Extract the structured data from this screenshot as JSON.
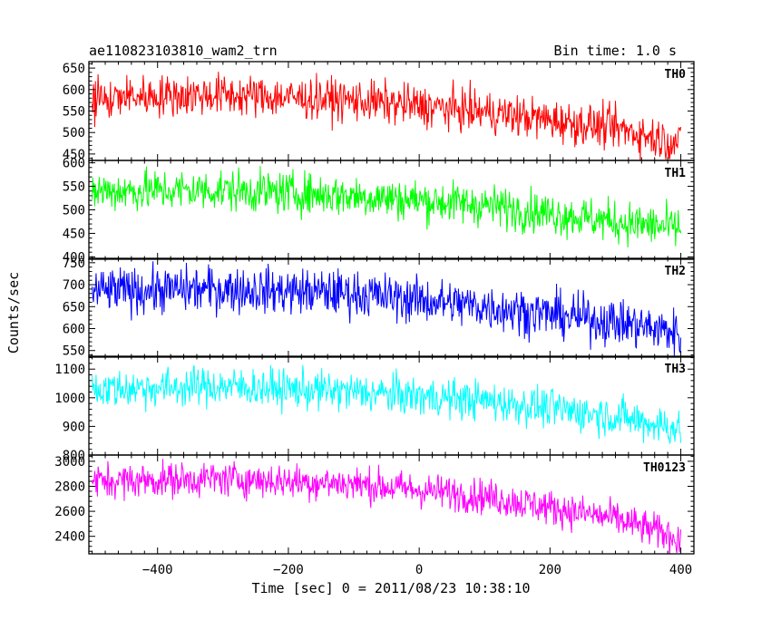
{
  "header": {
    "obs_title": "ae110823103810_wam2_trn",
    "bin_time": "Bin time: 1.0 s"
  },
  "axes": {
    "xlabel": "Time [sec] 0 = 2011/08/23 10:38:10",
    "ylabel": "Counts/sec"
  },
  "chart_data": {
    "type": "line",
    "title": "ae110823103810_wam2_trn",
    "subtitle": "Bin time: 1.0 s",
    "xlabel": "Time [sec] 0 = 2011/08/23 10:38:10",
    "ylabel": "Counts/sec",
    "xlim": [
      -505,
      420
    ],
    "x_ticks": [
      -400,
      -200,
      0,
      200,
      400
    ],
    "x_step": 1,
    "grid": false,
    "panels": [
      {
        "name": "TH0",
        "color": "#ff0000",
        "ylim": [
          435,
          665
        ],
        "y_ticks": [
          450,
          500,
          550,
          600,
          650
        ],
        "trend": [
          [
            -500,
            583
          ],
          [
            -300,
            588
          ],
          [
            -100,
            575
          ],
          [
            100,
            548
          ],
          [
            300,
            510
          ],
          [
            400,
            475
          ]
        ],
        "noise_sd": 24
      },
      {
        "name": "TH1",
        "color": "#00ff00",
        "ylim": [
          395,
          605
        ],
        "y_ticks": [
          400,
          450,
          500,
          550,
          600
        ],
        "trend": [
          [
            -500,
            540
          ],
          [
            -300,
            542
          ],
          [
            -100,
            530
          ],
          [
            100,
            510
          ],
          [
            300,
            475
          ],
          [
            400,
            460
          ]
        ],
        "noise_sd": 22
      },
      {
        "name": "TH2",
        "color": "#0000ff",
        "ylim": [
          535,
          760
        ],
        "y_ticks": [
          550,
          600,
          650,
          700,
          750
        ],
        "trend": [
          [
            -500,
            685
          ],
          [
            -300,
            690
          ],
          [
            -100,
            680
          ],
          [
            100,
            650
          ],
          [
            300,
            615
          ],
          [
            400,
            590
          ]
        ],
        "noise_sd": 26
      },
      {
        "name": "TH3",
        "color": "#00ffff",
        "ylim": [
          800,
          1145
        ],
        "y_ticks": [
          800,
          900,
          1000,
          1100
        ],
        "trend": [
          [
            -500,
            1030
          ],
          [
            -300,
            1040
          ],
          [
            -100,
            1020
          ],
          [
            100,
            990
          ],
          [
            300,
            935
          ],
          [
            400,
            890
          ]
        ],
        "noise_sd": 34
      },
      {
        "name": "TH0123",
        "color": "#ff00ff",
        "ylim": [
          2260,
          3050
        ],
        "y_ticks": [
          2400,
          2600,
          2800,
          3000
        ],
        "trend": [
          [
            -500,
            2840
          ],
          [
            -300,
            2860
          ],
          [
            -100,
            2820
          ],
          [
            100,
            2720
          ],
          [
            300,
            2540
          ],
          [
            400,
            2380
          ]
        ],
        "noise_sd": 70
      }
    ]
  }
}
